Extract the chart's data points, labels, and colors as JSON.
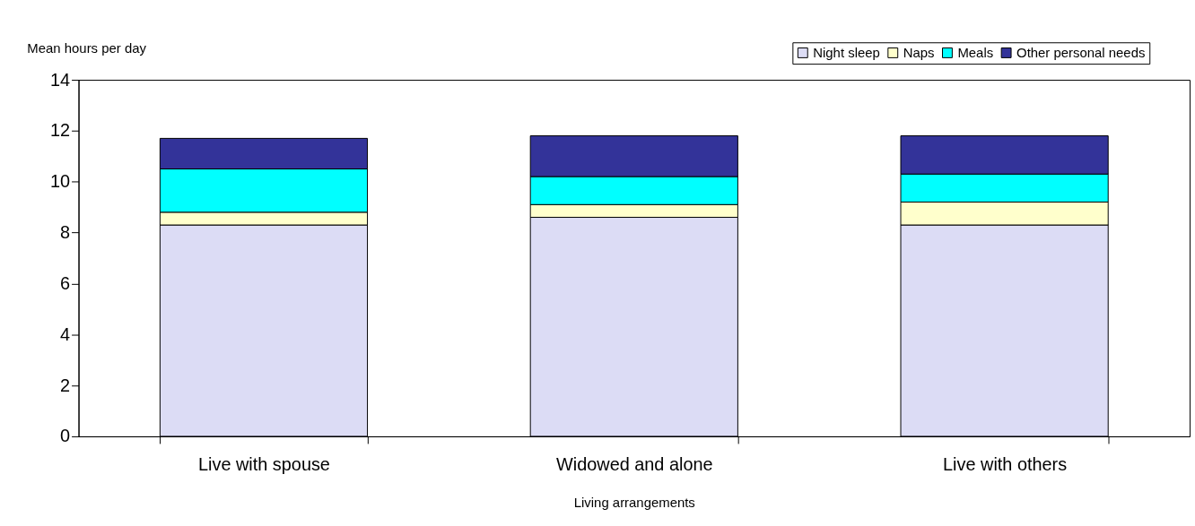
{
  "chart_data": {
    "type": "bar",
    "stacked": true,
    "xlabel": "Living arrangements",
    "ylabel": "Mean hours per day",
    "categories": [
      "Live with spouse",
      "Widowed and alone",
      "Live with others"
    ],
    "series": [
      {
        "name": "Night sleep",
        "color": "#dcdcf5",
        "values": [
          8.3,
          8.6,
          8.3
        ]
      },
      {
        "name": "Naps",
        "color": "#ffffcc",
        "values": [
          0.5,
          0.5,
          0.9
        ]
      },
      {
        "name": "Meals",
        "color": "#00ffff",
        "values": [
          1.7,
          1.1,
          1.1
        ]
      },
      {
        "name": "Other personal needs",
        "color": "#333399",
        "values": [
          1.2,
          1.6,
          1.5
        ]
      }
    ],
    "ylim": [
      0,
      14
    ],
    "yticks": [
      0,
      2,
      4,
      6,
      8,
      10,
      12,
      14
    ],
    "grid": false,
    "legend": "top right"
  }
}
